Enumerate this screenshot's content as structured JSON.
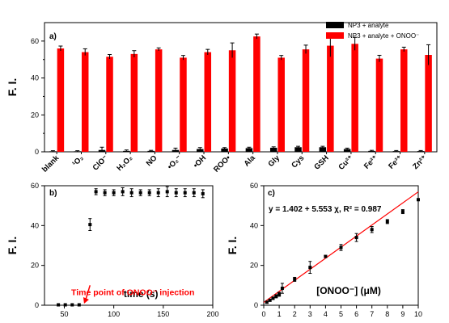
{
  "figure": {
    "background": "#ffffff"
  },
  "chart_data": [
    {
      "panel": "a)",
      "type": "bar",
      "ylabel": "F. I.",
      "xlabel": "",
      "ylim": [
        0,
        70
      ],
      "yticks": [
        0,
        20,
        40,
        60
      ],
      "categories": [
        "blank",
        "¹O₂",
        "ClO⁻",
        "H₂O₂",
        "NO",
        "•O₂⁻",
        "•OH",
        "ROO•",
        "Ala",
        "Gly",
        "Cys",
        "GSH",
        "Cu²⁺",
        "Fe²⁺",
        "Fe³⁺",
        "Zn²⁺"
      ],
      "legend_position": "top-right",
      "series": [
        {
          "name": "NP3 + analyte",
          "color": "#000000",
          "values": [
            0.3,
            0.3,
            1.0,
            0.5,
            0.5,
            1.0,
            1.5,
            1.8,
            2.0,
            2.2,
            2.5,
            2.5,
            1.5,
            0.5,
            0.4,
            0.4
          ],
          "errors": [
            0.3,
            0.3,
            1.5,
            0.5,
            0.3,
            1.0,
            0.8,
            0.5,
            0.5,
            0.5,
            0.5,
            0.5,
            0.5,
            0.3,
            0.3,
            0.3
          ]
        },
        {
          "name": "NP3 + analyte + ONOO⁻",
          "color": "#ff0000",
          "values": [
            56,
            54,
            51.5,
            53,
            55.5,
            51,
            54,
            55,
            62.5,
            51,
            55.5,
            57.5,
            58.5,
            50.5,
            55.5,
            52.5
          ],
          "errors": [
            1.3,
            1.8,
            1.2,
            1.8,
            0.8,
            1.2,
            1.5,
            4,
            1.3,
            1.2,
            2.3,
            6,
            3.5,
            1.8,
            1.2,
            5.5
          ]
        }
      ]
    },
    {
      "panel": "b)",
      "type": "scatter",
      "xlabel": "time (s)",
      "ylabel": "F. I.",
      "xlim": [
        30,
        200
      ],
      "ylim": [
        0,
        60
      ],
      "xticks": [
        50,
        100,
        150,
        200
      ],
      "yticks": [
        0,
        20,
        40,
        60
      ],
      "annotation": "Time point of ONOO⁻ injection",
      "annotation_color": "#ff0000",
      "annotation_arrow_to": [
        70,
        0
      ],
      "points": [
        {
          "x": 44,
          "y": 0.2,
          "err": 0
        },
        {
          "x": 51,
          "y": 0.2,
          "err": 0
        },
        {
          "x": 58,
          "y": 0.2,
          "err": 0
        },
        {
          "x": 65,
          "y": 0.2,
          "err": 0
        },
        {
          "x": 76,
          "y": 40.5,
          "err": 3
        },
        {
          "x": 82,
          "y": 57,
          "err": 1.5
        },
        {
          "x": 91,
          "y": 56.5,
          "err": 1.5
        },
        {
          "x": 100,
          "y": 56.5,
          "err": 1.5
        },
        {
          "x": 109,
          "y": 57,
          "err": 2
        },
        {
          "x": 118,
          "y": 56.5,
          "err": 2
        },
        {
          "x": 127,
          "y": 56.5,
          "err": 1.5
        },
        {
          "x": 136,
          "y": 56.5,
          "err": 1.5
        },
        {
          "x": 145,
          "y": 56.5,
          "err": 2
        },
        {
          "x": 154,
          "y": 57,
          "err": 2.5
        },
        {
          "x": 163,
          "y": 56.5,
          "err": 2
        },
        {
          "x": 172,
          "y": 56.5,
          "err": 2
        },
        {
          "x": 181,
          "y": 56.5,
          "err": 2
        },
        {
          "x": 190,
          "y": 56,
          "err": 2
        }
      ]
    },
    {
      "panel": "c)",
      "type": "scatter",
      "xlabel": "[ONOO⁻] (μM)",
      "ylabel": "F. I.",
      "xlim": [
        0,
        10
      ],
      "ylim": [
        0,
        60
      ],
      "xticks": [
        0,
        1,
        2,
        3,
        4,
        5,
        6,
        7,
        8,
        9,
        10
      ],
      "yticks": [
        0,
        20,
        40,
        60
      ],
      "equation": "y = 1.402 + 5.553 χ,  R² = 0.987",
      "fit": {
        "intercept": 1.402,
        "slope": 5.553,
        "color": "#ff0000"
      },
      "points": [
        {
          "x": 0.2,
          "y": 1.5,
          "err": 0.5
        },
        {
          "x": 0.4,
          "y": 2.5,
          "err": 0.5
        },
        {
          "x": 0.6,
          "y": 3.5,
          "err": 0.6
        },
        {
          "x": 0.8,
          "y": 4.5,
          "err": 0.8
        },
        {
          "x": 1.0,
          "y": 5.5,
          "err": 1.0
        },
        {
          "x": 1.2,
          "y": 8.5,
          "err": 2.5
        },
        {
          "x": 2.0,
          "y": 13,
          "err": 1.0
        },
        {
          "x": 3.0,
          "y": 19,
          "err": 3.0
        },
        {
          "x": 4.0,
          "y": 24.5,
          "err": 0.5
        },
        {
          "x": 5.0,
          "y": 29,
          "err": 1.5
        },
        {
          "x": 6.0,
          "y": 34,
          "err": 2.0
        },
        {
          "x": 7.0,
          "y": 38,
          "err": 1.5
        },
        {
          "x": 8.0,
          "y": 42,
          "err": 1.0
        },
        {
          "x": 9.0,
          "y": 47,
          "err": 1.0
        },
        {
          "x": 10.0,
          "y": 53,
          "err": 0.5
        }
      ]
    }
  ]
}
